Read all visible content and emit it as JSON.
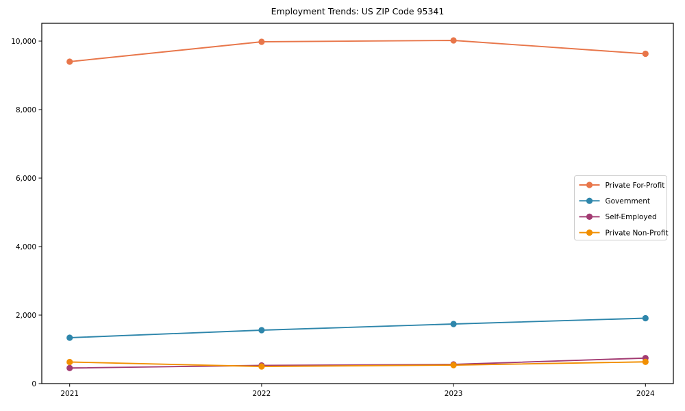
{
  "page": {
    "background": "#ffffff",
    "axis_color": "#000000",
    "legend_border_color": "#cccccc",
    "legend_background": "#ffffff"
  },
  "chart_data": {
    "type": "line",
    "title": "Employment Trends: US ZIP Code 95341",
    "xlabel": "",
    "ylabel": "",
    "categories": [
      "2021",
      "2022",
      "2023",
      "2024"
    ],
    "series": [
      {
        "name": "Private For-Profit",
        "color": "#E8764A",
        "values": [
          9400,
          9980,
          10020,
          9630
        ]
      },
      {
        "name": "Government",
        "color": "#2E86AB",
        "values": [
          1340,
          1560,
          1740,
          1910
        ]
      },
      {
        "name": "Self-Employed",
        "color": "#A23B72",
        "values": [
          455,
          530,
          560,
          745
        ]
      },
      {
        "name": "Private Non-Profit",
        "color": "#F18F01",
        "values": [
          630,
          500,
          540,
          635
        ]
      }
    ],
    "ylim": [
      0,
      10520
    ],
    "yticks": [
      0,
      2000,
      4000,
      6000,
      8000,
      10000
    ],
    "ytick_labels": [
      "0",
      "2,000",
      "4,000",
      "6,000",
      "8,000",
      "10,000"
    ],
    "grid": false,
    "marker": "circle",
    "legend_position": "center right"
  }
}
